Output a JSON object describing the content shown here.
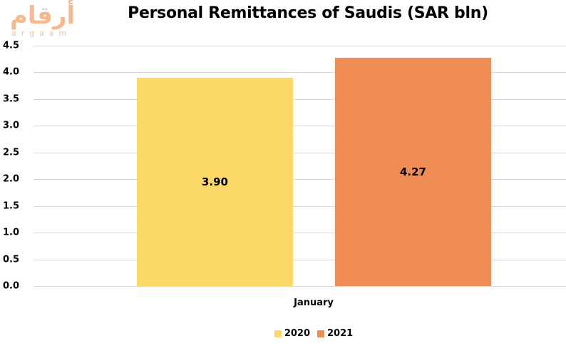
{
  "logo": {
    "arabic": "أرقام",
    "latin": "argaam"
  },
  "chart_data": {
    "type": "bar",
    "title": "Personal Remittances of Saudis (SAR bln)",
    "xlabel": "",
    "ylabel": "",
    "categories": [
      "January"
    ],
    "series": [
      {
        "name": "2020",
        "values": [
          3.9
        ],
        "color": "#FCD867",
        "label": "3.90"
      },
      {
        "name": "2021",
        "values": [
          4.27
        ],
        "color": "#F08C55",
        "label": "4.27"
      }
    ],
    "ylim": [
      0,
      4.5
    ],
    "yticks": [
      "0.0",
      "0.5",
      "1.0",
      "1.5",
      "2.0",
      "2.5",
      "3.0",
      "3.5",
      "4.0",
      "4.5"
    ],
    "grid": true,
    "legend_position": "bottom",
    "data_labels": true
  }
}
